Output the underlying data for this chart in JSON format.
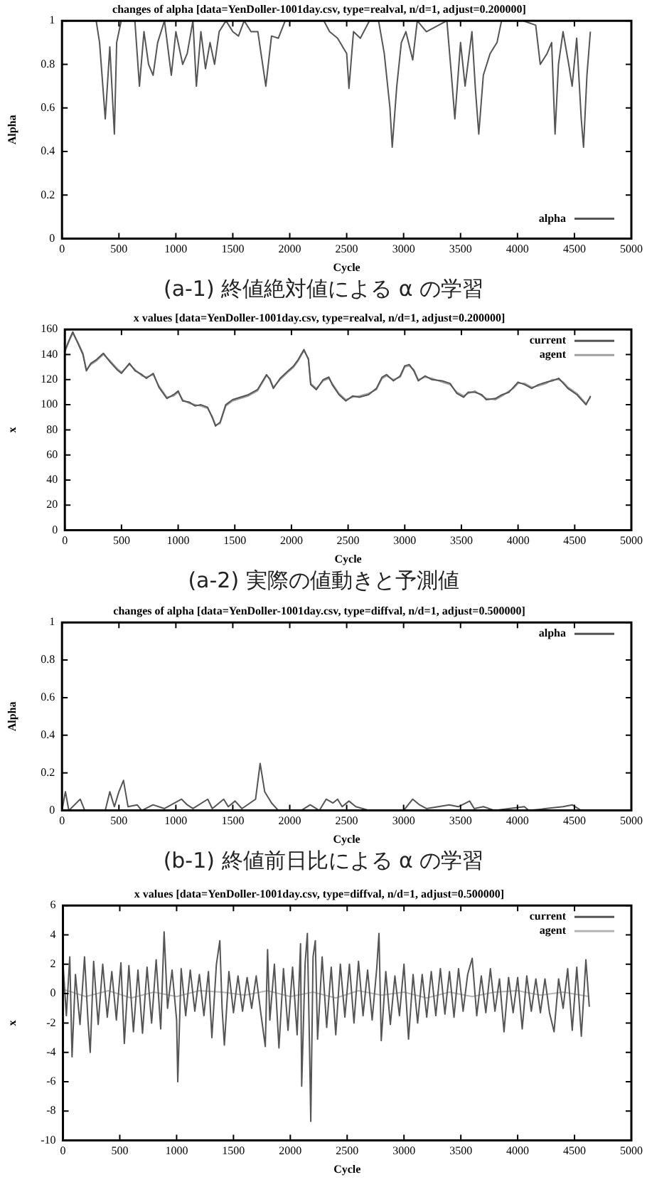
{
  "chart_data": [
    {
      "type": "line",
      "title": "changes of alpha [data=YenDoller-1001day.csv, type=realval, n/d=1, adjust=0.200000]",
      "xlabel": "Cycle",
      "ylabel": "Alpha",
      "xlim": [
        0,
        5000
      ],
      "xticks": [
        0,
        500,
        1000,
        1500,
        2000,
        2500,
        3000,
        3500,
        4000,
        4500,
        5000
      ],
      "ylim": [
        0,
        1
      ],
      "yticks": [
        0,
        0.2,
        0.4,
        0.6,
        0.8,
        1
      ],
      "legend": "bottom right",
      "marker": "none",
      "annotations": [
        "(a-1) 終値絶対値による α の学習"
      ],
      "x": [
        0,
        300,
        330,
        380,
        420,
        460,
        480,
        520,
        640,
        680,
        720,
        760,
        800,
        840,
        900,
        960,
        1000,
        1060,
        1100,
        1150,
        1180,
        1220,
        1260,
        1300,
        1340,
        1380,
        1440,
        1500,
        1550,
        1600,
        1660,
        1720,
        1790,
        1840,
        1900,
        1960,
        2300,
        2350,
        2420,
        2500,
        2520,
        2560,
        2620,
        2700,
        2780,
        2830,
        2880,
        2900,
        2940,
        2980,
        3020,
        3080,
        3120,
        3200,
        3380,
        3420,
        3450,
        3500,
        3540,
        3600,
        3630,
        3660,
        3700,
        3760,
        3820,
        3860,
        3980,
        4050,
        4160,
        4200,
        4260,
        4300,
        4330,
        4360,
        4400,
        4450,
        4480,
        4520,
        4560,
        4580,
        4610,
        4640
      ],
      "series": [
        {
          "name": "alpha",
          "color": "#555555",
          "values": [
            1,
            1,
            0.9,
            0.55,
            0.88,
            0.48,
            0.9,
            1,
            1,
            0.7,
            0.95,
            0.8,
            0.75,
            0.9,
            1,
            0.75,
            0.95,
            0.8,
            0.85,
            1,
            0.7,
            0.95,
            0.78,
            0.9,
            0.8,
            0.95,
            1,
            0.95,
            0.93,
            1,
            0.95,
            0.95,
            0.7,
            0.93,
            0.92,
            1,
            1,
            0.95,
            0.92,
            0.85,
            0.69,
            0.95,
            0.92,
            1,
            1,
            0.85,
            0.6,
            0.42,
            0.7,
            0.9,
            0.95,
            0.82,
            1,
            0.95,
            1,
            0.75,
            0.55,
            0.9,
            0.7,
            0.95,
            0.69,
            0.48,
            0.75,
            0.85,
            0.9,
            1,
            1,
            1,
            0.98,
            0.8,
            0.85,
            0.9,
            0.48,
            0.8,
            0.95,
            0.8,
            0.7,
            0.92,
            0.55,
            0.42,
            0.75,
            0.95
          ]
        }
      ]
    },
    {
      "type": "line",
      "title": "x values [data=YenDoller-1001day.csv, type=realval, n/d=1, adjust=0.200000]",
      "xlabel": "Cycle",
      "ylabel": "x",
      "xlim": [
        0,
        5000
      ],
      "xticks": [
        0,
        500,
        1000,
        1500,
        2000,
        2500,
        3000,
        3500,
        4000,
        4500,
        5000
      ],
      "ylim": [
        0,
        160
      ],
      "yticks": [
        0,
        20,
        40,
        60,
        80,
        100,
        120,
        140,
        160
      ],
      "legend": "top right",
      "marker": "none",
      "annotations": [
        "(a-2) 実際の値動きと予測値"
      ],
      "x": [
        0,
        40,
        70,
        120,
        160,
        190,
        230,
        280,
        340,
        400,
        460,
        500,
        570,
        620,
        680,
        720,
        780,
        830,
        900,
        960,
        1000,
        1040,
        1100,
        1150,
        1200,
        1260,
        1300,
        1330,
        1370,
        1420,
        1480,
        1550,
        1620,
        1700,
        1780,
        1810,
        1840,
        1900,
        1970,
        2020,
        2060,
        2110,
        2150,
        2170,
        2220,
        2280,
        2330,
        2360,
        2420,
        2480,
        2540,
        2600,
        2680,
        2750,
        2800,
        2840,
        2900,
        2960,
        3000,
        3040,
        3080,
        3120,
        3180,
        3240,
        3330,
        3400,
        3460,
        3520,
        3560,
        3620,
        3680,
        3720,
        3800,
        3860,
        3920,
        3960,
        4000,
        4060,
        4120,
        4180,
        4250,
        4300,
        4360,
        4400,
        4440,
        4520,
        4580,
        4600,
        4640
      ],
      "series": [
        {
          "name": "current",
          "color": "#555555",
          "values": [
            143,
            152,
            158,
            148,
            140,
            127,
            133,
            136,
            141,
            134,
            128,
            125,
            133,
            127,
            124,
            121,
            125,
            114,
            105,
            108,
            111,
            103,
            102,
            99,
            100,
            98,
            90,
            83,
            86,
            100,
            104,
            106,
            108,
            112,
            124,
            120,
            113,
            121,
            127,
            131,
            136,
            144,
            136,
            116,
            112,
            120,
            122,
            116,
            108,
            103,
            107,
            106,
            108,
            113,
            122,
            124,
            119,
            123,
            131,
            132,
            127,
            119,
            123,
            120,
            119,
            117,
            109,
            106,
            110,
            110,
            108,
            104,
            105,
            108,
            110,
            114,
            118,
            116,
            113,
            116,
            118,
            119,
            121,
            117,
            113,
            108,
            102,
            100,
            107
          ]
        },
        {
          "name": "agent",
          "color": "#a0a0a0",
          "values": [
            142,
            151,
            157,
            149,
            141,
            128,
            132,
            135,
            140,
            135,
            129,
            126,
            132,
            128,
            123,
            122,
            124,
            115,
            106,
            107,
            110,
            104,
            101,
            100,
            99,
            97,
            91,
            84,
            85,
            99,
            103,
            105,
            107,
            111,
            123,
            121,
            114,
            120,
            126,
            130,
            135,
            143,
            137,
            117,
            113,
            119,
            121,
            117,
            109,
            104,
            106,
            107,
            109,
            112,
            121,
            123,
            120,
            122,
            130,
            131,
            128,
            120,
            122,
            121,
            118,
            116,
            110,
            107,
            109,
            111,
            107,
            105,
            104,
            107,
            111,
            113,
            117,
            117,
            114,
            115,
            117,
            120,
            120,
            118,
            114,
            109,
            103,
            101,
            106
          ]
        }
      ]
    },
    {
      "type": "line",
      "title": "changes of alpha [data=YenDoller-1001day.csv, type=diffval, n/d=1, adjust=0.500000]",
      "xlabel": "Cycle",
      "ylabel": "Alpha",
      "xlim": [
        0,
        5000
      ],
      "xticks": [
        0,
        500,
        1000,
        1500,
        2000,
        2500,
        3000,
        3500,
        4000,
        4500,
        5000
      ],
      "ylim": [
        0,
        1
      ],
      "yticks": [
        0,
        0.2,
        0.4,
        0.6,
        0.8,
        1
      ],
      "legend": "top right",
      "marker": "none",
      "annotations": [
        "(b-1) 終値前日比による α の学習"
      ],
      "x": [
        0,
        30,
        60,
        160,
        200,
        380,
        420,
        460,
        500,
        540,
        580,
        660,
        700,
        800,
        900,
        1050,
        1100,
        1150,
        1280,
        1320,
        1420,
        1460,
        1520,
        1580,
        1700,
        1740,
        1780,
        1840,
        1900,
        2100,
        2180,
        2260,
        2320,
        2380,
        2420,
        2460,
        2520,
        2580,
        2700,
        3000,
        3080,
        3140,
        3200,
        3400,
        3480,
        3580,
        3620,
        3700,
        3800,
        4060,
        4100,
        4400,
        4480,
        4560,
        4620
      ],
      "series": [
        {
          "name": "alpha",
          "color": "#555555",
          "values": [
            0,
            0.1,
            0,
            0.06,
            0,
            0,
            0.1,
            0.02,
            0.1,
            0.16,
            0.02,
            0.03,
            0,
            0.03,
            0.01,
            0.06,
            0.03,
            0.01,
            0.06,
            0.01,
            0.06,
            0.02,
            0.05,
            0.01,
            0.06,
            0.25,
            0.1,
            0.04,
            0,
            0,
            0.03,
            0,
            0.06,
            0.04,
            0.06,
            0.02,
            0.05,
            0.02,
            0,
            0,
            0.06,
            0.03,
            0.01,
            0.03,
            0.02,
            0.05,
            0.01,
            0.02,
            0,
            0.02,
            0,
            0.02,
            0.03,
            0,
            0
          ]
        }
      ]
    },
    {
      "type": "line",
      "title": "x values [data=YenDoller-1001day.csv, type=diffval, n/d=1, adjust=0.500000]",
      "xlabel": "Cycle",
      "ylabel": "x",
      "xlim": [
        0,
        5000
      ],
      "xticks": [
        0,
        500,
        1000,
        1500,
        2000,
        2500,
        3000,
        3500,
        4000,
        4500,
        5000
      ],
      "ylim": [
        -10,
        6
      ],
      "yticks": [
        -10,
        -8,
        -6,
        -4,
        -2,
        0,
        2,
        4,
        6
      ],
      "legend": "top right",
      "marker": "none",
      "series": [
        {
          "name": "current",
          "color": "#555555",
          "x": [
            0,
            30,
            60,
            80,
            110,
            150,
            190,
            220,
            240,
            270,
            310,
            350,
            390,
            430,
            470,
            510,
            540,
            580,
            620,
            660,
            700,
            740,
            780,
            820,
            860,
            890,
            920,
            960,
            1000,
            1010,
            1040,
            1080,
            1120,
            1160,
            1200,
            1240,
            1280,
            1310,
            1350,
            1380,
            1400,
            1420,
            1460,
            1500,
            1540,
            1580,
            1620,
            1660,
            1700,
            1740,
            1780,
            1800,
            1820,
            1860,
            1900,
            1940,
            1980,
            2020,
            2060,
            2090,
            2100,
            2130,
            2150,
            2170,
            2180,
            2200,
            2220,
            2240,
            2280,
            2320,
            2360,
            2400,
            2440,
            2480,
            2520,
            2560,
            2600,
            2640,
            2680,
            2720,
            2760,
            2780,
            2800,
            2840,
            2880,
            2920,
            2960,
            3000,
            3040,
            3080,
            3120,
            3160,
            3200,
            3240,
            3280,
            3320,
            3360,
            3400,
            3440,
            3480,
            3520,
            3560,
            3600,
            3640,
            3680,
            3720,
            3760,
            3800,
            3840,
            3880,
            3920,
            3960,
            4000,
            4040,
            4080,
            4120,
            4160,
            4200,
            4240,
            4280,
            4320,
            4360,
            4400,
            4440,
            4480,
            4520,
            4560,
            4600,
            4630
          ],
          "values": [
            2.1,
            -1.5,
            2.5,
            -4.3,
            1.3,
            -2.1,
            2.5,
            -1.8,
            -4,
            2.2,
            -2.1,
            2,
            -1.6,
            1.5,
            -1.8,
            2.1,
            -3.4,
            1.9,
            -2.6,
            1.6,
            -2.7,
            1.8,
            -2,
            2.3,
            -2.4,
            4.2,
            -1,
            1.6,
            -1.8,
            -6,
            1.7,
            -1.5,
            1.6,
            -1.2,
            1.3,
            -1.5,
            1.5,
            -3,
            2,
            3.6,
            -1,
            -3.5,
            1.5,
            -1.3,
            1.2,
            -1.2,
            1.1,
            -1,
            1.2,
            -1.3,
            -3.6,
            3,
            -1.8,
            2,
            -3.7,
            1.7,
            -2.5,
            1.8,
            -2.8,
            3.4,
            -6.3,
            2,
            4.1,
            -4,
            -8.7,
            2.5,
            3.6,
            -3.1,
            2.5,
            -2.3,
            1.8,
            -2.8,
            2,
            -1.6,
            2,
            -2,
            2.2,
            -1.5,
            1.6,
            -1.8,
            1.7,
            4.1,
            -3.2,
            1.5,
            -2.1,
            1.2,
            -1.5,
            2,
            -3.1,
            1.3,
            -2,
            1.3,
            -1.6,
            1.5,
            -1.5,
            1.7,
            -1.4,
            1.5,
            -1.6,
            1.7,
            -1.2,
            1.3,
            2.4,
            -1.5,
            1.2,
            -1.3,
            1.7,
            -1.2,
            1,
            -2.6,
            1.1,
            -1.3,
            1.1,
            -2.4,
            1.2,
            -1.2,
            1,
            -1.3,
            1,
            -1.3,
            -2.6,
            1,
            -1,
            1.7,
            -2.5,
            1.8,
            -2.9,
            2.3,
            -0.9
          ]
        },
        {
          "name": "agent",
          "color": "#b5b5b5",
          "x": [
            0,
            200,
            400,
            600,
            800,
            1000,
            1200,
            1400,
            1600,
            1800,
            2000,
            2200,
            2400,
            2600,
            2800,
            3000,
            3200,
            3400,
            3600,
            3800,
            4000,
            4200,
            4400,
            4630
          ],
          "values": [
            0.3,
            -0.2,
            0.2,
            -0.3,
            0.1,
            -0.2,
            0.2,
            0.1,
            -0.1,
            0.2,
            -0.2,
            0.1,
            -0.3,
            0.2,
            -0.1,
            0.1,
            -0.3,
            0.1,
            -0.2,
            0.1,
            0.2,
            -0.1,
            0.1,
            -0.2
          ]
        }
      ]
    }
  ]
}
